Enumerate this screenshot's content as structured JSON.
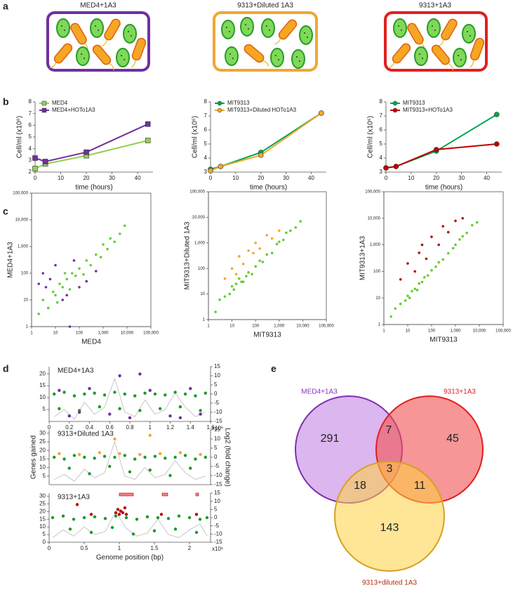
{
  "panel_labels": [
    "a",
    "b",
    "c",
    "d",
    "e"
  ],
  "panel_a": {
    "titles": [
      "MED4+1A3",
      "9313+Diluted 1A3",
      "9313+1A3"
    ]
  },
  "chart_data": [
    {
      "type": "line",
      "xlabel": "time (hours)",
      "ylabel": "Cell/ml (x10⁶)",
      "x": [
        0,
        4,
        20,
        44
      ],
      "xlim": [
        0,
        46
      ],
      "xticks": [
        0,
        10,
        20,
        30,
        40
      ],
      "ylim": [
        2,
        8
      ],
      "yticks": [
        2,
        3,
        4,
        5,
        6,
        7,
        8
      ],
      "series": [
        {
          "name": "MED4",
          "color": "#92d050",
          "marker": "square",
          "values": [
            2.3,
            2.7,
            3.4,
            4.7
          ]
        },
        {
          "name": "MED4+HOTo1A3",
          "color": "#7030a0",
          "marker": "square",
          "values": [
            3.2,
            2.9,
            3.7,
            6.1
          ]
        }
      ]
    },
    {
      "type": "line",
      "xlabel": "time (hours)",
      "ylabel": "Cell/ml (x10⁶)",
      "x": [
        0,
        4,
        20,
        44
      ],
      "xlim": [
        0,
        46
      ],
      "xticks": [
        0,
        10,
        20,
        30,
        40
      ],
      "ylim": [
        3,
        8
      ],
      "yticks": [
        3,
        4,
        5,
        6,
        7,
        8
      ],
      "series": [
        {
          "name": "MIT9313",
          "color": "#00a651",
          "marker": "circle",
          "values": [
            3.2,
            3.4,
            4.4,
            7.2
          ]
        },
        {
          "name": "MIT9313+Diluted HOTo1A3",
          "color": "#f0a830",
          "marker": "circle",
          "values": [
            3.1,
            3.4,
            4.2,
            7.2
          ]
        }
      ]
    },
    {
      "type": "line",
      "xlabel": "time (hours)",
      "ylabel": "Cell/ml (x10⁶)",
      "x": [
        0,
        4,
        20,
        44
      ],
      "xlim": [
        0,
        46
      ],
      "xticks": [
        0,
        10,
        20,
        30,
        40
      ],
      "ylim": [
        3,
        8
      ],
      "yticks": [
        3,
        4,
        5,
        6,
        7,
        8
      ],
      "series": [
        {
          "name": "MIT9313",
          "color": "#00a651",
          "marker": "circle",
          "values": [
            3.3,
            3.4,
            4.5,
            7.1
          ]
        },
        {
          "name": "MIT9313+HOTo1A3",
          "color": "#c00000",
          "marker": "circle",
          "values": [
            3.3,
            3.4,
            4.6,
            5.0
          ]
        }
      ]
    },
    {
      "type": "scatter",
      "xlabel": "MED4",
      "ylabel": "MED4+1A3",
      "xlog": true,
      "ylog": true,
      "frame": true,
      "xlim": [
        1,
        100000
      ],
      "ylim": [
        1,
        100000
      ],
      "xticks": [
        1,
        10,
        100,
        {
          "value": 1000,
          "label": "1,000"
        },
        {
          "value": 10000,
          "label": "10,000"
        },
        {
          "value": 100000,
          "label": "100,000"
        }
      ],
      "yticks": [
        1,
        10,
        100,
        {
          "value": 1000,
          "label": "1,000"
        },
        {
          "value": 10000,
          "label": "10,000"
        },
        {
          "value": 100000,
          "label": "100,000"
        }
      ],
      "series": [
        {
          "color": "#66cc33",
          "x": [
            2,
            3,
            5,
            8,
            10,
            15,
            20,
            30,
            40,
            50,
            70,
            100,
            150,
            200,
            300,
            500,
            800,
            1000,
            1500,
            2000,
            3000,
            5000,
            8000,
            12,
            25
          ],
          "values": [
            3,
            10,
            5,
            20,
            15,
            40,
            30,
            60,
            25,
            100,
            80,
            150,
            90,
            300,
            200,
            500,
            400,
            1200,
            800,
            2000,
            1500,
            3000,
            6000,
            8,
            100
          ]
        },
        {
          "color": "#7030a0",
          "x": [
            2,
            3,
            4,
            6,
            10,
            20,
            30,
            40,
            60,
            100,
            200,
            500
          ],
          "values": [
            40,
            100,
            30,
            60,
            200,
            10,
            15,
            1,
            300,
            30,
            50,
            120
          ]
        }
      ]
    },
    {
      "type": "scatter",
      "xlabel": "MIT9313",
      "ylabel": "MIT9313+Diluted 1A3",
      "xlog": true,
      "ylog": true,
      "frame": true,
      "xlim": [
        1,
        100000
      ],
      "ylim": [
        1,
        100000
      ],
      "xticks": [
        1,
        10,
        100,
        {
          "value": 1000,
          "label": "1,000"
        },
        {
          "value": 10000,
          "label": "10,000"
        },
        {
          "value": 100000,
          "label": "100,000"
        }
      ],
      "yticks": [
        1,
        10,
        100,
        {
          "value": 1000,
          "label": "1,000"
        },
        {
          "value": 10000,
          "label": "10,000"
        },
        {
          "value": 100000,
          "label": "100,000"
        }
      ],
      "series": [
        {
          "color": "#66cc33",
          "x": [
            2,
            3,
            5,
            8,
            10,
            15,
            20,
            30,
            40,
            50,
            70,
            100,
            150,
            200,
            300,
            500,
            800,
            1000,
            1500,
            2000,
            3000,
            5000,
            8000,
            12,
            25
          ],
          "values": [
            2,
            6,
            8,
            10,
            20,
            25,
            40,
            30,
            50,
            70,
            60,
            120,
            200,
            180,
            350,
            400,
            900,
            1100,
            1300,
            2500,
            3000,
            4000,
            7000,
            15,
            30
          ]
        },
        {
          "color": "#f0a830",
          "x": [
            5,
            10,
            15,
            20,
            30,
            50,
            80,
            100,
            150,
            300,
            500,
            1000
          ],
          "values": [
            40,
            100,
            60,
            300,
            150,
            500,
            400,
            1000,
            600,
            2000,
            1500,
            3000
          ]
        }
      ]
    },
    {
      "type": "scatter",
      "xlabel": "MIT9313",
      "ylabel": "MIT9313+1A3",
      "xlog": true,
      "ylog": true,
      "frame": true,
      "xlim": [
        1,
        100000
      ],
      "ylim": [
        1,
        100000
      ],
      "xticks": [
        1,
        10,
        100,
        {
          "value": 1000,
          "label": "1,000"
        },
        {
          "value": 10000,
          "label": "10,000"
        },
        {
          "value": 100000,
          "label": "100,000"
        }
      ],
      "yticks": [
        1,
        10,
        100,
        {
          "value": 1000,
          "label": "1,000"
        },
        {
          "value": 10000,
          "label": "10,000"
        },
        {
          "value": 100000,
          "label": "100,000"
        }
      ],
      "series": [
        {
          "color": "#66cc33",
          "x": [
            2,
            3,
            5,
            8,
            10,
            15,
            20,
            30,
            40,
            50,
            70,
            100,
            150,
            200,
            300,
            500,
            800,
            1000,
            1500,
            2000,
            3000,
            5000,
            8000,
            12,
            25
          ],
          "values": [
            2,
            4,
            6,
            8,
            12,
            18,
            22,
            35,
            40,
            60,
            70,
            110,
            150,
            220,
            280,
            480,
            750,
            1000,
            1600,
            2100,
            2800,
            5500,
            7000,
            10,
            20
          ]
        },
        {
          "color": "#b01010",
          "x": [
            5,
            10,
            20,
            30,
            40,
            60,
            100,
            200,
            300,
            500,
            1000,
            2000
          ],
          "values": [
            50,
            200,
            100,
            500,
            1000,
            300,
            2000,
            1000,
            5000,
            3000,
            8000,
            10000
          ]
        }
      ]
    },
    {
      "type": "scatter",
      "title": "MED4+1A3",
      "x_note": "x10⁶",
      "xlim": [
        0,
        1.6
      ],
      "xticks": [
        0,
        0.2,
        0.4,
        0.6,
        0.8,
        1,
        1.2,
        1.4,
        1.6
      ],
      "ylim": [
        0,
        23
      ],
      "yticks": [
        5,
        10,
        15,
        20
      ],
      "y2lim": [
        -15,
        15
      ],
      "y2ticks": [
        -15,
        -10,
        -5,
        0,
        5,
        10,
        15
      ],
      "series": [
        {
          "color": "#bbbbbb",
          "line": true,
          "x": [
            0.05,
            0.15,
            0.25,
            0.35,
            0.45,
            0.55,
            0.65,
            0.75,
            0.85,
            0.95,
            1.05,
            1.15,
            1.25,
            1.35,
            1.45,
            1.55
          ],
          "values": [
            2,
            5,
            1,
            8,
            3,
            6,
            18,
            4,
            2,
            9,
            3,
            5,
            12,
            6,
            2,
            4
          ]
        },
        {
          "color": "#1a9a2a",
          "axis": "y2",
          "x": [
            0.05,
            0.15,
            0.25,
            0.35,
            0.45,
            0.55,
            0.65,
            0.75,
            0.85,
            0.95,
            1.05,
            1.15,
            1.25,
            1.35,
            1.45,
            1.55,
            0.1,
            0.3,
            0.5,
            0.7,
            0.9,
            1.1,
            1.3,
            1.5
          ],
          "values": [
            0,
            1,
            -1,
            0,
            0.5,
            -0.5,
            1,
            0,
            -1,
            0.5,
            0,
            -0.5,
            1,
            0,
            -1,
            0.5,
            -8,
            -9,
            -7,
            -8,
            -9,
            -8,
            -7,
            -9
          ]
        },
        {
          "color": "#7030a0",
          "axis": "y2",
          "x": [
            0.1,
            0.2,
            0.4,
            0.6,
            0.7,
            0.8,
            1.0,
            1.2,
            1.4,
            1.5,
            0.3,
            0.9,
            1.3
          ],
          "values": [
            2,
            -12,
            3,
            -11,
            10,
            -13,
            2,
            -12,
            3,
            -11,
            -10,
            11,
            -13
          ]
        }
      ]
    },
    {
      "type": "scatter",
      "title": "9313+Diluted 1A3",
      "ylabel": "Genes gained",
      "y2label": "Log2 (fold change)",
      "xlim": [
        0,
        1.6
      ],
      "ylim": [
        0,
        32
      ],
      "yticks": [
        5,
        10,
        15,
        20,
        25,
        30
      ],
      "y2lim": [
        -15,
        15
      ],
      "y2ticks": [
        -15,
        -10,
        -5,
        0,
        5,
        10,
        15
      ],
      "series": [
        {
          "color": "#bbbbbb",
          "line": true,
          "x": [
            0.05,
            0.15,
            0.25,
            0.35,
            0.45,
            0.55,
            0.65,
            0.75,
            0.85,
            0.95,
            1.05,
            1.15,
            1.25,
            1.35,
            1.45,
            1.55
          ],
          "values": [
            3,
            6,
            2,
            9,
            4,
            7,
            25,
            5,
            3,
            10,
            4,
            6,
            14,
            7,
            3,
            5
          ]
        },
        {
          "color": "#1a9a2a",
          "axis": "y2",
          "x": [
            0.05,
            0.15,
            0.25,
            0.35,
            0.45,
            0.55,
            0.65,
            0.75,
            0.85,
            0.95,
            1.05,
            1.15,
            1.25,
            1.35,
            1.45,
            1.55,
            0.2,
            0.4,
            0.6,
            0.8,
            1.0,
            1.2,
            1.4
          ],
          "values": [
            0,
            -1,
            1,
            0,
            -0.5,
            0.5,
            0,
            1,
            -1,
            0,
            0.5,
            -0.5,
            0,
            1,
            -1,
            0,
            -6,
            -9,
            -5,
            -8,
            -7,
            -10,
            -6
          ]
        },
        {
          "color": "#f0a830",
          "axis": "y2",
          "x": [
            0.1,
            0.3,
            0.5,
            0.7,
            0.9,
            1.1,
            1.3,
            1.5,
            0.65,
            1.0
          ],
          "values": [
            2,
            1.5,
            2.5,
            2,
            1.5,
            2,
            2.5,
            1.5,
            10,
            12
          ]
        }
      ]
    },
    {
      "type": "scatter",
      "title": "9313+1A3",
      "xlabel": "Genome position (bp)",
      "x_note": "x10⁶",
      "xlim": [
        0,
        2.3
      ],
      "xticks": [
        0,
        0.5,
        1,
        1.5,
        2
      ],
      "ylim": [
        0,
        32
      ],
      "yticks": [
        0,
        5,
        10,
        15,
        20,
        25,
        30
      ],
      "y2lim": [
        -15,
        15
      ],
      "y2ticks": [
        -15,
        -10,
        -5,
        0,
        5,
        10,
        15
      ],
      "series": [
        {
          "color": "#bbbbbb",
          "line": true,
          "x": [
            0.05,
            0.2,
            0.35,
            0.5,
            0.65,
            0.8,
            0.95,
            1.1,
            1.25,
            1.4,
            1.55,
            1.7,
            1.85,
            2.0,
            2.15,
            2.25
          ],
          "values": [
            3,
            8,
            4,
            10,
            5,
            7,
            20,
            9,
            4,
            6,
            15,
            5,
            3,
            8,
            12,
            4
          ]
        },
        {
          "color": "#1a9a2a",
          "axis": "y2",
          "x": [
            0.05,
            0.2,
            0.35,
            0.5,
            0.65,
            0.8,
            0.95,
            1.1,
            1.25,
            1.4,
            1.55,
            1.7,
            1.85,
            2.0,
            2.15,
            2.25,
            0.3,
            0.6,
            0.9,
            1.2,
            1.5,
            1.8,
            2.1
          ],
          "values": [
            0,
            1,
            -1,
            0,
            0.5,
            -0.5,
            1,
            0,
            -1,
            0.5,
            0,
            -0.5,
            1,
            0,
            -1,
            0,
            -7,
            -9,
            -6,
            -10,
            -8,
            -7,
            -9
          ]
        },
        {
          "color": "#c00000",
          "axis": "y2",
          "x": [
            0.95,
            0.98,
            1.0,
            1.02,
            1.05,
            1.08,
            1.1,
            0.6,
            1.6,
            2.1,
            0.4
          ],
          "values": [
            3,
            5,
            2,
            4,
            3,
            6,
            2,
            2,
            2,
            2,
            8
          ]
        }
      ]
    }
  ],
  "venn": {
    "labels": [
      "MED4+1A3",
      "9313+1A3",
      "9313+diluted 1A3"
    ],
    "counts": [
      "291",
      "7",
      "45",
      "3",
      "18",
      "11",
      "143"
    ]
  }
}
